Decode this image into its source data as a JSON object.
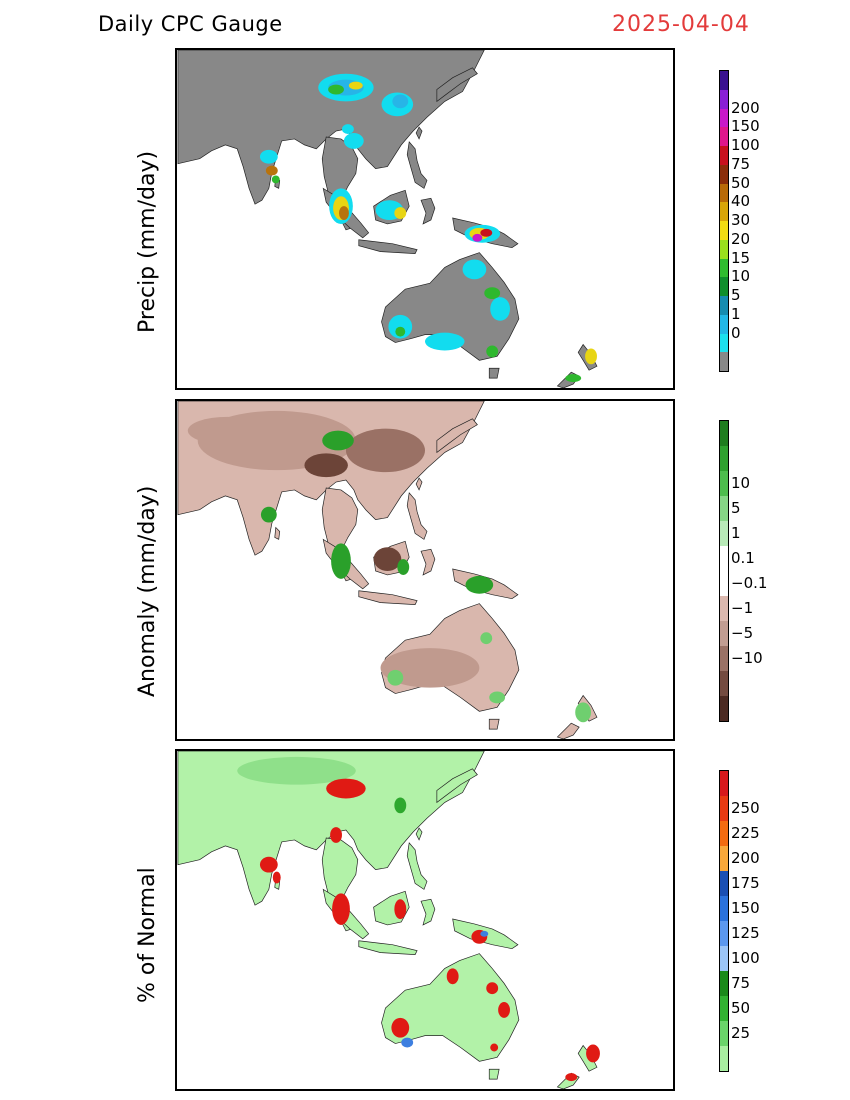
{
  "header": {
    "title": "Daily CPC Gauge",
    "date": "2025-04-04"
  },
  "panels": {
    "precip": {
      "ylabel": "Precip (mm/day)",
      "colorbar": {
        "labels": [
          "200",
          "150",
          "100",
          "75",
          "50",
          "40",
          "30",
          "20",
          "15",
          "10",
          "5",
          "1",
          "0"
        ],
        "colors": [
          "#3a1190",
          "#8a1fd6",
          "#c918c9",
          "#e0168c",
          "#c8101e",
          "#8b2d0a",
          "#b86a08",
          "#d8a508",
          "#f2dc12",
          "#9ae01d",
          "#2fbd2f",
          "#0f8f2c",
          "#168cb0",
          "#22b7e6",
          "#1ce0ee",
          "#888888"
        ]
      },
      "colors": {
        "land": "#888888",
        "light": "#12dcef",
        "cyan": "#27b5e7",
        "blue": "#1a8db1",
        "green": "#2eb82e",
        "yellow": "#e8d514",
        "orange": "#b8730d",
        "red": "#c8101e",
        "magenta": "#c918c9"
      }
    },
    "anomaly": {
      "ylabel": "Anomaly (mm/day)",
      "colorbar": {
        "labels": [
          "10",
          "5",
          "1",
          "0.1",
          "−0.1",
          "−1",
          "−5",
          "−10"
        ],
        "colors": [
          "#1e7d1e",
          "#2ea12e",
          "#4dbd4d",
          "#86d686",
          "#b8eab8",
          "#ffffff",
          "#ffffff",
          "#dcb9af",
          "#c29d92",
          "#9b7266",
          "#744b40",
          "#4c2a22"
        ]
      },
      "colors": {
        "light": "#d9b7ad",
        "mid": "#c09a8e",
        "dark": "#9a7165",
        "darker": "#6c4438",
        "green": "#2aa02a",
        "lightgreen": "#6fcf6f"
      }
    },
    "percent": {
      "ylabel": "% of Normal",
      "colorbar": {
        "labels": [
          "250",
          "225",
          "200",
          "175",
          "150",
          "125",
          "100",
          "75",
          "50",
          "25"
        ],
        "colors": [
          "#d7181c",
          "#e83a12",
          "#f36b10",
          "#f9a83a",
          "#1a4fb3",
          "#2b72dc",
          "#5c98ef",
          "#9cc5f7",
          "#1a8a1a",
          "#31b231",
          "#6ad46a",
          "#a8eea0"
        ]
      },
      "colors": {
        "base": "#b2f2a8",
        "mid": "#8fe08a",
        "green": "#2ea82e",
        "red": "#e01a14",
        "blue": "#3d7fe0"
      }
    }
  }
}
